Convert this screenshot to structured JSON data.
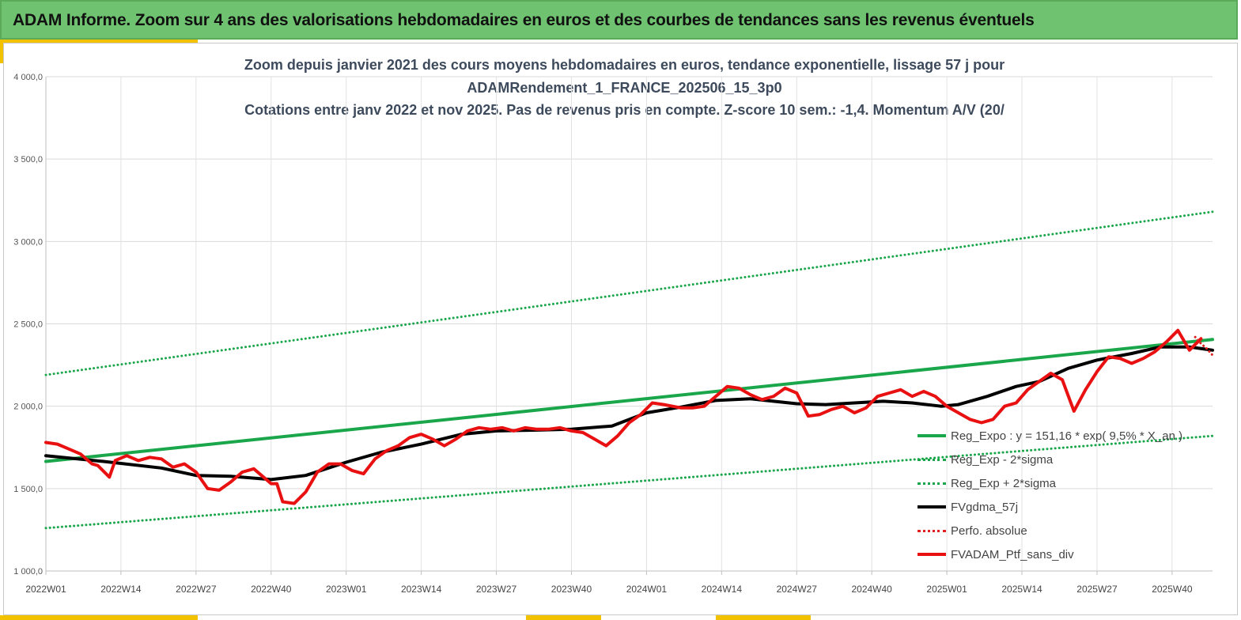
{
  "banner": {
    "title": "ADAM Informe. Zoom sur 4 ans des valorisations hebdomadaires en euros et des courbes de tendances sans les revenus éventuels"
  },
  "chart_data": {
    "type": "line",
    "title_lines": [
      "Zoom depuis janvier 2021 des cours moyens hebdomadaires  en euros, tendance exponentielle, lissage 57 j pour",
      "ADAMRendement_1_FRANCE_202506_15_3p0",
      "Cotations entre janv 2022 et nov 2025. Pas de revenus pris en compte. Z-score 10 sem.: -1,4. Momentum A/V (20/"
    ],
    "ylim": [
      1000,
      4000
    ],
    "yticks": [
      1000,
      1500,
      2000,
      2500,
      3000,
      3500,
      4000
    ],
    "ytick_labels": [
      "1 000,0",
      "1 500,0",
      "2 000,0",
      "2 500,0",
      "3 000,0",
      "3 500,0",
      "4 000,0"
    ],
    "x_label_indices": [
      0,
      13,
      26,
      39,
      52,
      65,
      78,
      91,
      104,
      117,
      130,
      143,
      156,
      169,
      182,
      195
    ],
    "x_tick_labels": [
      "2022W01",
      "2022W14",
      "2022W27",
      "2022W40",
      "2023W01",
      "2023W14",
      "2023W27",
      "2023W40",
      "2024W01",
      "2024W14",
      "2024W27",
      "2024W40",
      "2025W01",
      "2025W14",
      "2025W27",
      "2025W40"
    ],
    "n_weeks": 203,
    "grid": true,
    "legend_position": "bottom-right",
    "series": [
      {
        "name": "Reg_Expo : y = 151,16 * exp( 9,5% *  X_an )",
        "color": "#1aa64a",
        "style": "solid",
        "x": [
          0,
          202
        ],
        "y": [
          1665,
          2405
        ]
      },
      {
        "name": "Reg_Exp - 2*sigma",
        "color": "#1aa64a",
        "style": "dotted",
        "x": [
          0,
          202
        ],
        "y": [
          1260,
          1820
        ]
      },
      {
        "name": "Reg_Exp + 2*sigma",
        "color": "#1aa64a",
        "style": "dotted",
        "x": [
          0,
          202
        ],
        "y": [
          2190,
          3180
        ]
      },
      {
        "name": "FVgdma_57j",
        "color": "#000000",
        "style": "solid",
        "x": [
          0,
          10,
          20,
          26,
          32,
          39,
          45,
          52,
          58,
          65,
          72,
          78,
          85,
          91,
          98,
          104,
          110,
          116,
          122,
          130,
          135,
          140,
          145,
          150,
          155,
          158,
          163,
          168,
          172,
          177,
          182,
          188,
          193,
          198,
          202
        ],
        "y": [
          1700,
          1665,
          1625,
          1580,
          1575,
          1555,
          1580,
          1660,
          1720,
          1770,
          1830,
          1850,
          1855,
          1860,
          1880,
          1960,
          1995,
          2035,
          2045,
          2015,
          2010,
          2020,
          2030,
          2020,
          2000,
          2010,
          2060,
          2120,
          2150,
          2230,
          2280,
          2320,
          2360,
          2360,
          2340
        ]
      },
      {
        "name": "Perfo. absolue",
        "color": "#e02020",
        "style": "dotted",
        "x": [
          199,
          200,
          201,
          202
        ],
        "y": [
          2420,
          2380,
          2350,
          2310
        ]
      },
      {
        "name": "FVADAM_Ptf_sans_div",
        "color": "#e81010",
        "style": "solid",
        "x": [
          0,
          2,
          4,
          6,
          8,
          9,
          11,
          12,
          14,
          16,
          18,
          20,
          22,
          24,
          26,
          28,
          30,
          32,
          34,
          36,
          38,
          39,
          40,
          41,
          43,
          45,
          47,
          49,
          51,
          53,
          55,
          57,
          59,
          61,
          63,
          65,
          67,
          69,
          71,
          73,
          75,
          77,
          79,
          81,
          83,
          85,
          87,
          89,
          91,
          93,
          95,
          97,
          99,
          101,
          103,
          105,
          107,
          110,
          112,
          114,
          116,
          118,
          120,
          122,
          124,
          126,
          128,
          130,
          132,
          134,
          136,
          138,
          140,
          142,
          144,
          146,
          148,
          150,
          152,
          154,
          156,
          158,
          160,
          162,
          164,
          166,
          168,
          170,
          172,
          174,
          176,
          178,
          180,
          182,
          184,
          186,
          188,
          190,
          192,
          194,
          196,
          198,
          200
        ],
        "y": [
          1780,
          1770,
          1740,
          1710,
          1650,
          1640,
          1570,
          1670,
          1700,
          1670,
          1690,
          1680,
          1630,
          1650,
          1600,
          1500,
          1490,
          1540,
          1600,
          1620,
          1560,
          1530,
          1530,
          1420,
          1410,
          1480,
          1600,
          1650,
          1650,
          1610,
          1590,
          1680,
          1730,
          1760,
          1810,
          1830,
          1800,
          1760,
          1800,
          1850,
          1870,
          1860,
          1870,
          1850,
          1870,
          1860,
          1860,
          1870,
          1850,
          1840,
          1800,
          1760,
          1820,
          1900,
          1950,
          2020,
          2010,
          1990,
          1990,
          2000,
          2060,
          2120,
          2110,
          2070,
          2040,
          2060,
          2110,
          2080,
          1940,
          1950,
          1980,
          2000,
          1960,
          1990,
          2060,
          2080,
          2100,
          2060,
          2090,
          2060,
          2000,
          1960,
          1920,
          1900,
          1920,
          2000,
          2020,
          2100,
          2150,
          2200,
          2160,
          1970,
          2100,
          2210,
          2300,
          2290,
          2260,
          2290,
          2330,
          2390,
          2460,
          2340,
          2410
        ]
      }
    ]
  }
}
